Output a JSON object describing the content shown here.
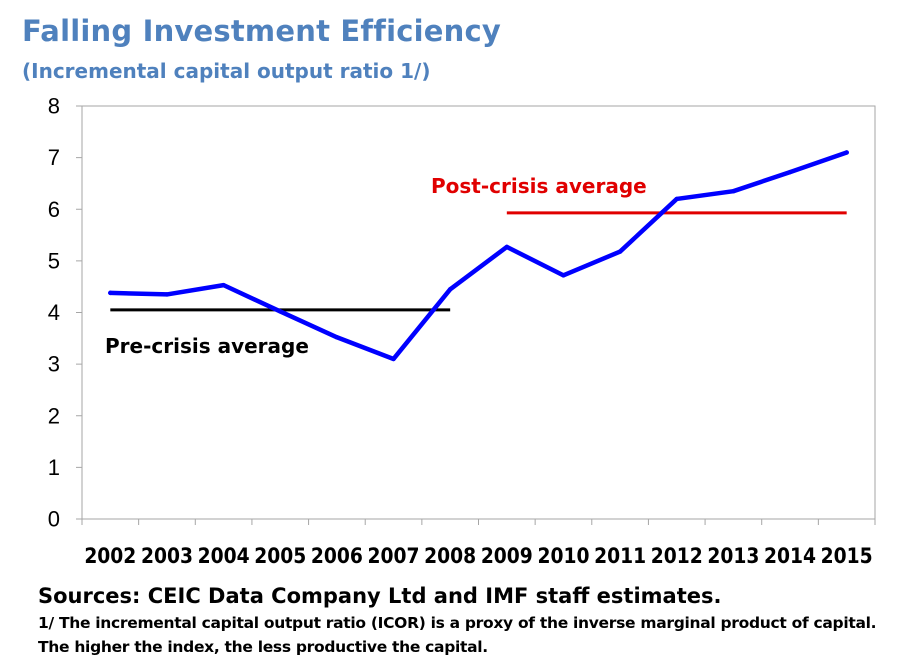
{
  "chart_data": {
    "type": "line",
    "title": "Falling Investment Efficiency",
    "subtitle": "(Incremental capital output ratio 1/)",
    "categories": [
      "2002",
      "2003",
      "2004",
      "2005",
      "2006",
      "2007",
      "2008",
      "2009",
      "2010",
      "2011",
      "2012",
      "2013",
      "2014",
      "2015"
    ],
    "ylim": [
      0,
      8
    ],
    "yticks": [
      0,
      1,
      2,
      3,
      4,
      5,
      6,
      7,
      8
    ],
    "grid": false,
    "series": [
      {
        "values": [
          4.38,
          4.35,
          4.53,
          4.02,
          3.52,
          3.1,
          4.45,
          5.27,
          4.72,
          5.18,
          6.2,
          6.35,
          6.72,
          7.1
        ],
        "color": "#0000ff"
      }
    ],
    "reference_lines": [
      {
        "label": "Pre-crisis average",
        "value": 4.05,
        "from": "2002",
        "to": "2008",
        "color": "#000000"
      },
      {
        "label": "Post-crisis average",
        "value": 5.93,
        "from": "2009",
        "to": "2015",
        "color": "#e00000"
      }
    ]
  },
  "footer": {
    "source": "Sources: CEIC Data Company Ltd and IMF staff estimates.",
    "note_line1": "1/ The incremental capital output ratio (ICOR) is a proxy of the inverse marginal product of capital.",
    "note_line2": "The higher the index, the less productive the capital."
  }
}
